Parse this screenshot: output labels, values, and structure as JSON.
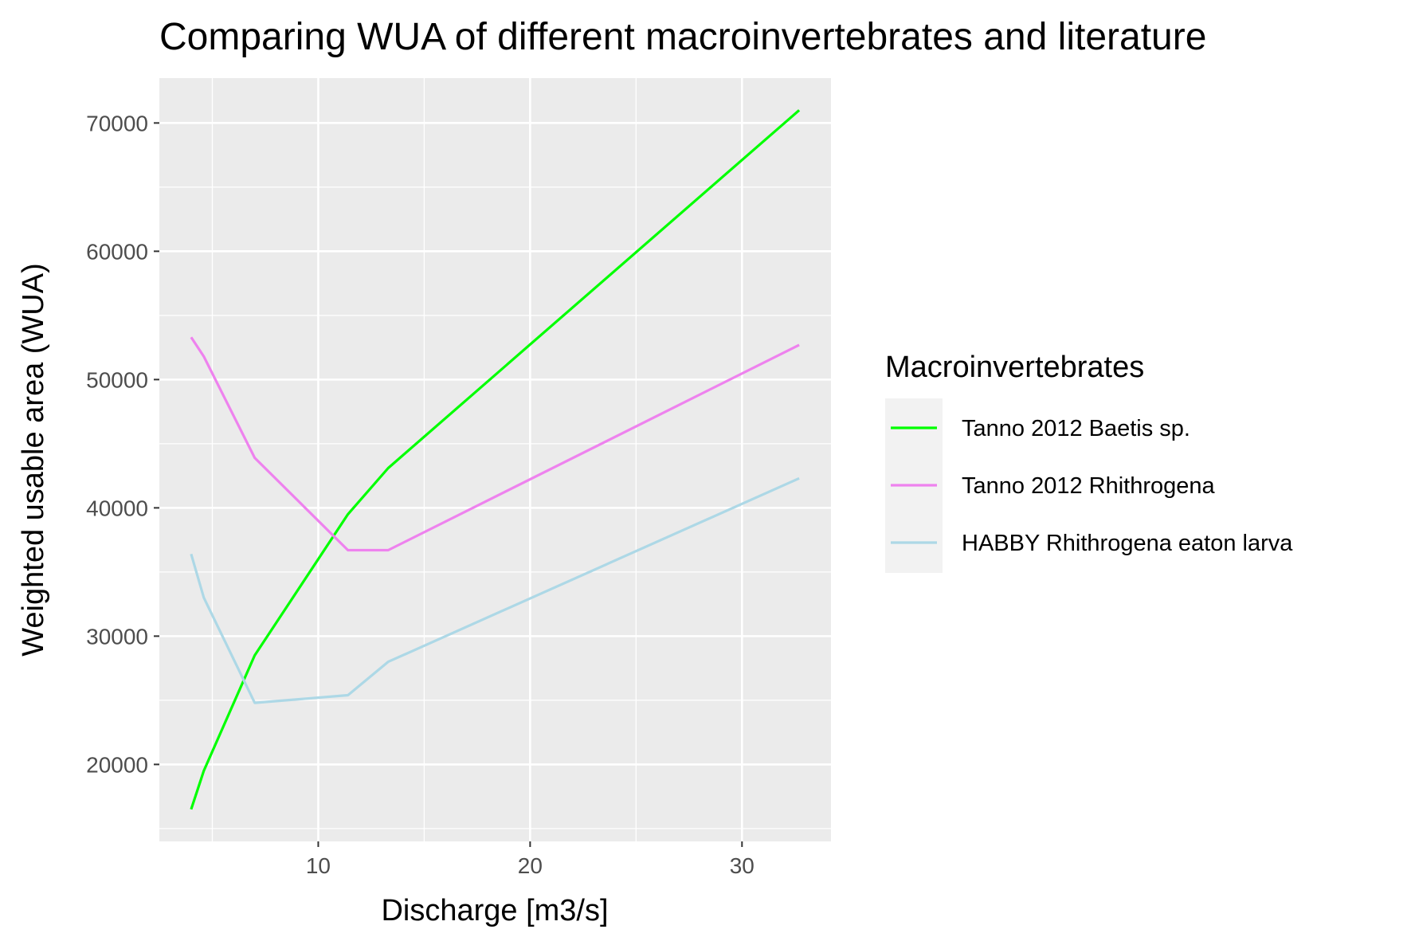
{
  "chart_data": {
    "type": "line",
    "title": "Comparing WUA of different macroinvertebrates and literature",
    "xlabel": "Discharge [m3/s]",
    "ylabel": "Weighted usable area (WUA)",
    "xlim": [
      2.5,
      34.2
    ],
    "ylim": [
      14000,
      73500
    ],
    "x_ticks": [
      10,
      20,
      30
    ],
    "y_ticks": [
      20000,
      30000,
      40000,
      50000,
      60000,
      70000
    ],
    "x_tick_labels": [
      "10",
      "20",
      "30"
    ],
    "y_tick_labels": [
      "20000",
      "30000",
      "40000",
      "50000",
      "60000",
      "70000"
    ],
    "grid": true,
    "legend": {
      "title": "Macroinvertebrates",
      "position": "right"
    },
    "x": [
      4.0,
      4.6,
      7.0,
      11.4,
      13.3,
      32.7
    ],
    "series": [
      {
        "name": "Tanno 2012 Baetis sp.",
        "color": "#00ff00",
        "values": [
          16500,
          19500,
          28500,
          39500,
          43100,
          71000
        ]
      },
      {
        "name": "Tanno 2012 Rhithrogena",
        "color": "#ee82ee",
        "values": [
          53300,
          51800,
          43900,
          36700,
          36700,
          52700
        ]
      },
      {
        "name": "HABBY Rhithrogena eaton larva",
        "color": "#add8e6",
        "values": [
          36400,
          33000,
          24800,
          25400,
          28000,
          42300
        ]
      }
    ]
  }
}
